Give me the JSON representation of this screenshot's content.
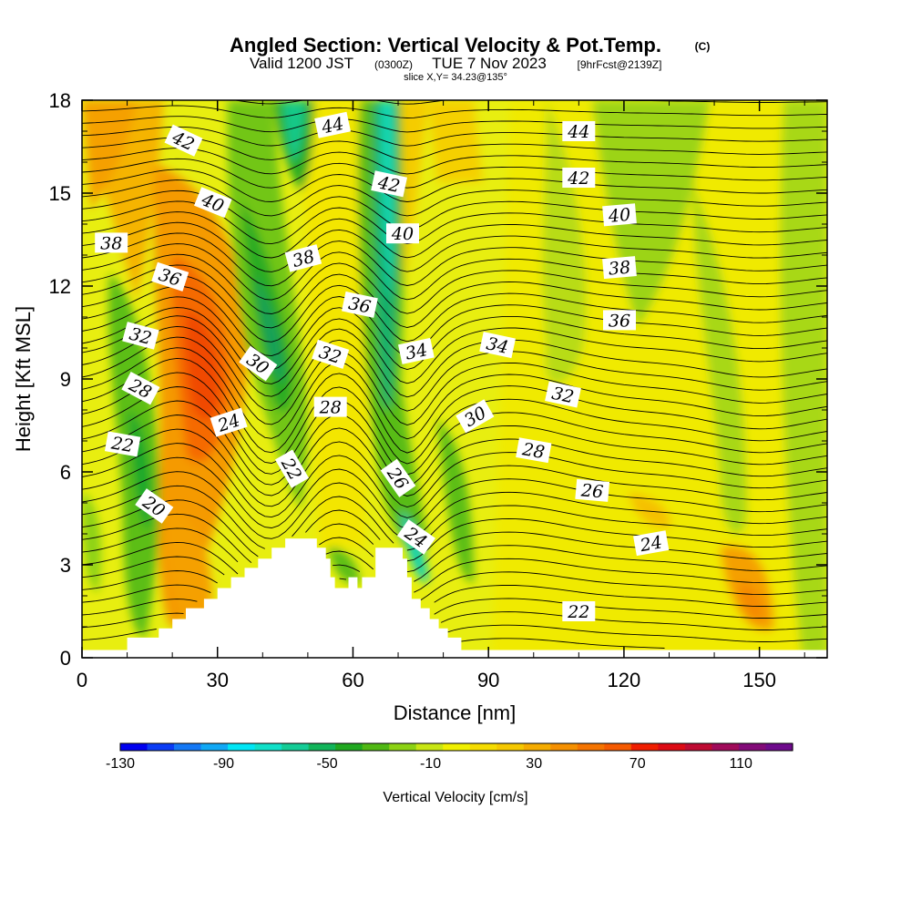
{
  "chart_data": {
    "type": "heatmap",
    "title": "Angled Section: Vertical Velocity & Pot.Temp.",
    "title_unit": "(C)",
    "subtitle_main": "Valid 1200 JST",
    "subtitle_utc": "(0300Z)",
    "subtitle_date": "TUE 7 Nov 2023",
    "subtitle_fcst": "[9hrFcst@2139Z]",
    "slice_info": "slice X,Y= 34.23@135°",
    "xlabel": "Distance [nm]",
    "ylabel": "Height [Kft MSL]",
    "xlim": [
      0,
      165
    ],
    "ylim": [
      0,
      18
    ],
    "x_ticks": [
      0,
      30,
      60,
      90,
      120,
      150
    ],
    "y_ticks": [
      0,
      3,
      6,
      9,
      12,
      15,
      18
    ],
    "colorbar": {
      "label": "Vertical Velocity [cm/s]",
      "range": [
        -130,
        130
      ],
      "tick_values": [
        -130,
        -90,
        -50,
        -10,
        30,
        70,
        110
      ],
      "colors": [
        "#0000f0",
        "#0a3cf5",
        "#1478f5",
        "#10a8f5",
        "#00e6f5",
        "#10e0c8",
        "#14cc96",
        "#12b45a",
        "#20a820",
        "#50b814",
        "#8cd214",
        "#c8e614",
        "#f0f000",
        "#f5dc00",
        "#f5c800",
        "#f5ac00",
        "#f59000",
        "#f57400",
        "#f55a00",
        "#f01e00",
        "#dc0a14",
        "#be0a32",
        "#a00a5a",
        "#820a78",
        "#6e0a8c"
      ]
    },
    "terrain": [
      [
        0,
        0.25
      ],
      [
        10,
        0.25
      ],
      [
        10,
        0.65
      ],
      [
        15,
        0.65
      ],
      [
        15,
        0.65
      ],
      [
        17,
        0.65
      ],
      [
        17,
        0.95
      ],
      [
        20,
        0.95
      ],
      [
        20,
        1.25
      ],
      [
        23,
        1.25
      ],
      [
        23,
        1.6
      ],
      [
        27,
        1.6
      ],
      [
        27,
        1.9
      ],
      [
        30,
        1.9
      ],
      [
        30,
        2.25
      ],
      [
        33,
        2.25
      ],
      [
        33,
        2.6
      ],
      [
        36,
        2.6
      ],
      [
        36,
        2.9
      ],
      [
        39,
        2.9
      ],
      [
        39,
        3.2
      ],
      [
        42,
        3.2
      ],
      [
        42,
        3.55
      ],
      [
        45,
        3.55
      ],
      [
        45,
        3.85
      ],
      [
        52,
        3.85
      ],
      [
        52,
        3.55
      ],
      [
        54,
        3.55
      ],
      [
        54,
        3.2
      ],
      [
        55,
        3.2
      ],
      [
        55,
        2.6
      ],
      [
        56,
        2.6
      ],
      [
        56,
        2.25
      ],
      [
        59,
        2.25
      ],
      [
        59,
        2.6
      ],
      [
        61,
        2.6
      ],
      [
        61,
        2.25
      ],
      [
        62,
        2.25
      ],
      [
        62,
        2.6
      ],
      [
        65,
        2.6
      ],
      [
        65,
        3.55
      ],
      [
        71,
        3.55
      ],
      [
        71,
        3.2
      ],
      [
        72,
        3.2
      ],
      [
        72,
        2.6
      ],
      [
        73,
        2.6
      ],
      [
        73,
        1.9
      ],
      [
        75,
        1.9
      ],
      [
        75,
        1.6
      ],
      [
        77,
        1.6
      ],
      [
        77,
        1.25
      ],
      [
        79,
        1.25
      ],
      [
        79,
        0.95
      ],
      [
        81,
        0.95
      ],
      [
        81,
        0.65
      ],
      [
        84,
        0.65
      ],
      [
        84,
        0.25
      ],
      [
        165,
        0.25
      ]
    ],
    "theta_labels": [
      {
        "text": "42",
        "x": 22.5,
        "y": 16.7,
        "rot": 25
      },
      {
        "text": "40",
        "x": 29,
        "y": 14.7,
        "rot": 22
      },
      {
        "text": "38",
        "x": 6.5,
        "y": 13.4,
        "rot": 0
      },
      {
        "text": "36",
        "x": 19.5,
        "y": 12.3,
        "rot": 18
      },
      {
        "text": "32",
        "x": 13,
        "y": 10.4,
        "rot": 15
      },
      {
        "text": "28",
        "x": 13,
        "y": 8.7,
        "rot": 28
      },
      {
        "text": "22",
        "x": 9,
        "y": 6.9,
        "rot": 10
      },
      {
        "text": "20",
        "x": 16,
        "y": 4.9,
        "rot": 35
      },
      {
        "text": "24",
        "x": 32.5,
        "y": 7.6,
        "rot": -18
      },
      {
        "text": "30",
        "x": 39,
        "y": 9.5,
        "rot": 35
      },
      {
        "text": "38",
        "x": 49,
        "y": 12.9,
        "rot": -15
      },
      {
        "text": "44",
        "x": 55.5,
        "y": 17.2,
        "rot": -12
      },
      {
        "text": "32",
        "x": 55,
        "y": 9.8,
        "rot": 18
      },
      {
        "text": "28",
        "x": 55,
        "y": 8.1,
        "rot": 0
      },
      {
        "text": "22",
        "x": 46.5,
        "y": 6.1,
        "rot": 60
      },
      {
        "text": "36",
        "x": 61.5,
        "y": 11.4,
        "rot": 12
      },
      {
        "text": "42",
        "x": 68,
        "y": 15.3,
        "rot": 12
      },
      {
        "text": "40",
        "x": 71,
        "y": 13.7,
        "rot": 0
      },
      {
        "text": "34",
        "x": 74,
        "y": 9.9,
        "rot": -12
      },
      {
        "text": "26",
        "x": 70,
        "y": 5.8,
        "rot": 55
      },
      {
        "text": "24",
        "x": 74,
        "y": 3.9,
        "rot": 35
      },
      {
        "text": "30",
        "x": 87,
        "y": 7.8,
        "rot": -30
      },
      {
        "text": "34",
        "x": 92,
        "y": 10.1,
        "rot": 12
      },
      {
        "text": "32",
        "x": 106.5,
        "y": 8.5,
        "rot": 12
      },
      {
        "text": "28",
        "x": 100,
        "y": 6.7,
        "rot": 10
      },
      {
        "text": "26",
        "x": 113,
        "y": 5.4,
        "rot": 5
      },
      {
        "text": "24",
        "x": 126,
        "y": 3.7,
        "rot": -10
      },
      {
        "text": "22",
        "x": 110,
        "y": 1.5,
        "rot": 0
      },
      {
        "text": "44",
        "x": 110,
        "y": 17
      },
      {
        "text": "42",
        "x": 110,
        "y": 15.5
      },
      {
        "text": "40",
        "x": 119,
        "y": 14.3,
        "rot": -5
      },
      {
        "text": "38",
        "x": 119,
        "y": 12.6,
        "rot": -5
      },
      {
        "text": "36",
        "x": 119,
        "y": 10.9,
        "rot": 0
      }
    ]
  }
}
